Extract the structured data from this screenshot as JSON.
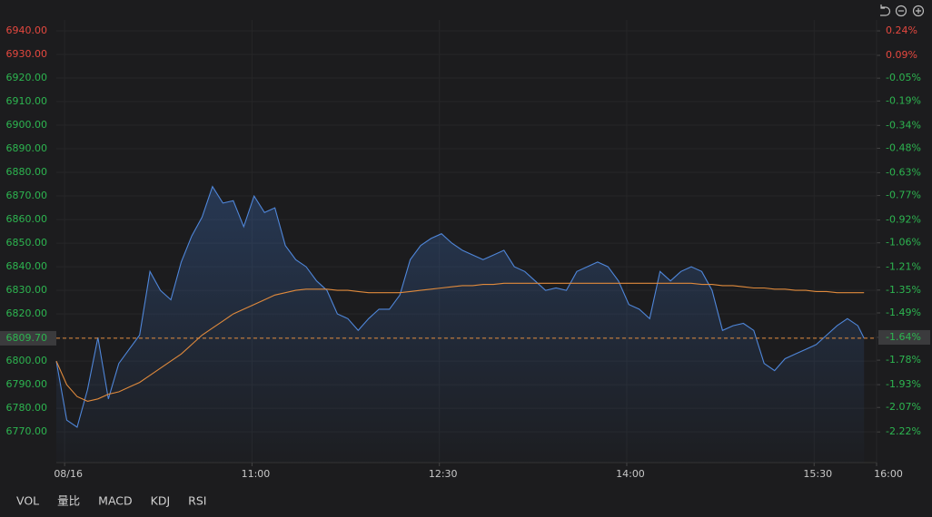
{
  "chart_data": {
    "type": "line",
    "x": [
      566,
      571,
      576,
      581,
      586,
      591,
      596,
      601,
      606,
      611,
      616,
      621,
      626,
      631,
      636,
      641,
      646,
      651,
      656,
      661,
      666,
      671,
      676,
      681,
      686,
      691,
      696,
      701,
      706,
      711,
      716,
      721,
      726,
      731,
      736,
      741,
      746,
      751,
      756,
      761,
      766,
      771,
      776,
      781,
      786,
      791,
      796,
      801,
      806,
      811,
      816,
      821,
      826,
      831,
      836,
      841,
      846,
      851,
      856,
      861,
      866,
      871,
      876,
      881,
      886,
      891,
      896,
      901,
      906,
      911,
      916,
      921,
      926,
      931,
      936,
      941,
      946,
      951,
      954
    ],
    "series": [
      {
        "color": "#4f86d9",
        "values": [
          6800,
          6775,
          6772,
          6788,
          6810,
          6784,
          6799,
          6805,
          6811,
          6838,
          6830,
          6826,
          6842,
          6853,
          6861,
          6874,
          6867,
          6868,
          6857,
          6870,
          6863,
          6865,
          6849,
          6843,
          6840,
          6834,
          6830,
          6820,
          6818,
          6813,
          6818,
          6822,
          6822,
          6828,
          6843,
          6849,
          6852,
          6854,
          6850,
          6847,
          6845,
          6843,
          6845,
          6847,
          6840,
          6838,
          6834,
          6830,
          6831,
          6830,
          6838,
          6840,
          6842,
          6840,
          6834,
          6824,
          6822,
          6818,
          6838,
          6834,
          6838,
          6840,
          6838,
          6830,
          6813,
          6815,
          6816,
          6813,
          6799,
          6796,
          6801,
          6803,
          6805,
          6807,
          6811,
          6815,
          6818,
          6815,
          6809.7
        ]
      },
      {
        "color": "#e08a3c",
        "values": [
          6800,
          6790,
          6785,
          6783,
          6784,
          6786,
          6787,
          6789,
          6791,
          6794,
          6797,
          6800,
          6803,
          6807,
          6811,
          6814,
          6817,
          6820,
          6822,
          6824,
          6826,
          6828,
          6829,
          6830,
          6830.5,
          6830.5,
          6830.5,
          6830,
          6830,
          6829.5,
          6829,
          6829,
          6829,
          6829,
          6829.5,
          6830,
          6830.5,
          6831,
          6831.5,
          6832,
          6832,
          6832.5,
          6832.5,
          6833,
          6833,
          6833,
          6833,
          6833,
          6833,
          6833,
          6833,
          6833,
          6833,
          6833,
          6833,
          6833,
          6833,
          6833,
          6833,
          6833,
          6833,
          6833,
          6832.5,
          6832.5,
          6832,
          6832,
          6831.5,
          6831,
          6831,
          6830.5,
          6830.5,
          6830,
          6830,
          6829.5,
          6829.5,
          6829,
          6829,
          6829,
          6829
        ]
      }
    ],
    "xlim": [
      566,
      960
    ],
    "xticks": [
      {
        "value": 570,
        "label": "08/16"
      },
      {
        "value": 660,
        "label": "11:00"
      },
      {
        "value": 750,
        "label": "12:30"
      },
      {
        "value": 840,
        "label": "14:00"
      },
      {
        "value": 930,
        "label": "15:30"
      },
      {
        "value": 960,
        "label": "16:00"
      }
    ],
    "ylim": [
      6757,
      6944.6
    ],
    "yticks": [
      {
        "value": 6940,
        "label": "6940.00"
      },
      {
        "value": 6930,
        "label": "6930.00"
      },
      {
        "value": 6920,
        "label": "6920.00"
      },
      {
        "value": 6910,
        "label": "6910.00"
      },
      {
        "value": 6900,
        "label": "6900.00"
      },
      {
        "value": 6890,
        "label": "6890.00"
      },
      {
        "value": 6880,
        "label": "6880.00"
      },
      {
        "value": 6870,
        "label": "6870.00"
      },
      {
        "value": 6860,
        "label": "6860.00"
      },
      {
        "value": 6850,
        "label": "6850.00"
      },
      {
        "value": 6840,
        "label": "6840.00"
      },
      {
        "value": 6830,
        "label": "6830.00"
      },
      {
        "value": 6820,
        "label": "6820.00"
      },
      {
        "value": 6810,
        "label": "6810.00"
      },
      {
        "value": 6800,
        "label": "6800.00"
      },
      {
        "value": 6790,
        "label": "6790.00"
      },
      {
        "value": 6780,
        "label": "6780.00"
      },
      {
        "value": 6770,
        "label": "6770.00"
      }
    ],
    "y2lim": [
      -2.408,
      0.307
    ],
    "y2ticks": [
      {
        "value": 0.24,
        "label": "0.24%"
      },
      {
        "value": 0.09,
        "label": "0.09%"
      },
      {
        "value": -0.05,
        "label": "-0.05%"
      },
      {
        "value": -0.19,
        "label": "-0.19%"
      },
      {
        "value": -0.34,
        "label": "-0.34%"
      },
      {
        "value": -0.48,
        "label": "-0.48%"
      },
      {
        "value": -0.63,
        "label": "-0.63%"
      },
      {
        "value": -0.77,
        "label": "-0.77%"
      },
      {
        "value": -0.92,
        "label": "-0.92%"
      },
      {
        "value": -1.06,
        "label": "-1.06%"
      },
      {
        "value": -1.21,
        "label": "-1.21%"
      },
      {
        "value": -1.35,
        "label": "-1.35%"
      },
      {
        "value": -1.49,
        "label": "-1.49%"
      },
      {
        "value": -1.64,
        "label": "-1.64%"
      },
      {
        "value": -1.78,
        "label": "-1.78%"
      },
      {
        "value": -1.93,
        "label": "-1.93%"
      },
      {
        "value": -2.07,
        "label": "-2.07%"
      },
      {
        "value": -2.22,
        "label": "-2.22%"
      }
    ],
    "reference": {
      "value": 6809.7,
      "label": "6809.70",
      "y2": {
        "value": -1.64,
        "label": "-1.64%"
      },
      "color": "#e08a3c"
    },
    "grid": true
  },
  "indicator_tabs": [
    "VOL",
    "量比",
    "MACD",
    "KDJ",
    "RSI"
  ]
}
